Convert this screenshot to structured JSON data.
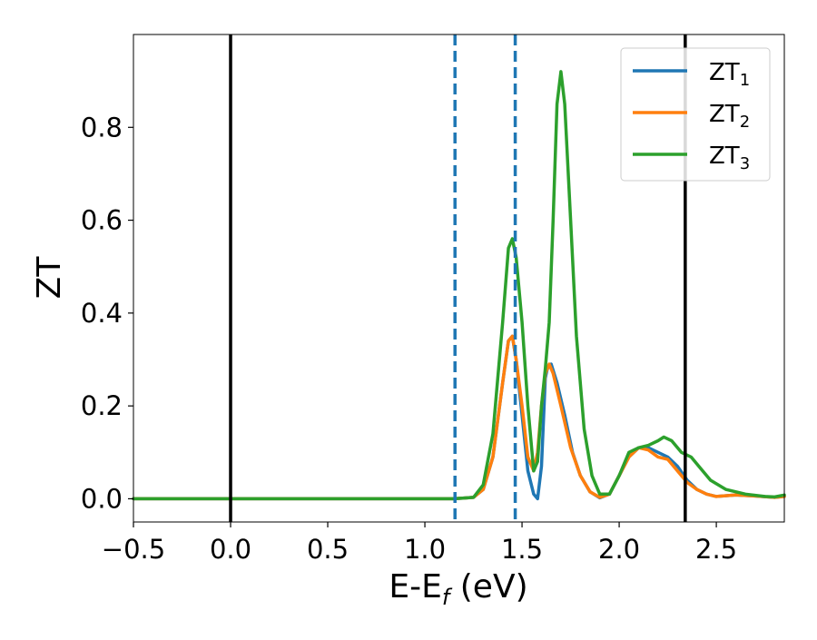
{
  "chart_data": {
    "type": "line",
    "title": "",
    "xlabel_main": "E-E",
    "xlabel_sub": "f",
    "xlabel_tail": " (eV)",
    "ylabel": "ZT",
    "xlim": [
      -0.5,
      2.85
    ],
    "ylim": [
      -0.05,
      1.0
    ],
    "grid": false,
    "legend_position": "top-right",
    "x_ticks": [
      -0.5,
      0.0,
      0.5,
      1.0,
      1.5,
      2.0,
      2.5
    ],
    "x_tick_labels": [
      "−0.5",
      "0.0",
      "0.5",
      "1.0",
      "1.5",
      "2.0",
      "2.5"
    ],
    "y_ticks": [
      0.0,
      0.2,
      0.4,
      0.6,
      0.8
    ],
    "y_tick_labels": [
      "0.0",
      "0.2",
      "0.4",
      "0.6",
      "0.8"
    ],
    "vertical_lines": [
      {
        "x": 0.0,
        "style": "solid",
        "color": "#000000"
      },
      {
        "x": 2.34,
        "style": "solid",
        "color": "#000000"
      },
      {
        "x": 1.155,
        "style": "dashed",
        "color": "#1f77b4"
      },
      {
        "x": 1.465,
        "style": "dashed",
        "color": "#1f77b4"
      }
    ],
    "series": [
      {
        "name": "ZT",
        "sub": "1",
        "color": "#1f77b4",
        "points": [
          [
            -0.5,
            0.0
          ],
          [
            1.15,
            0.0
          ],
          [
            1.25,
            0.003
          ],
          [
            1.3,
            0.02
          ],
          [
            1.35,
            0.09
          ],
          [
            1.4,
            0.25
          ],
          [
            1.43,
            0.34
          ],
          [
            1.45,
            0.35
          ],
          [
            1.47,
            0.3
          ],
          [
            1.5,
            0.18
          ],
          [
            1.53,
            0.06
          ],
          [
            1.56,
            0.01
          ],
          [
            1.58,
            0.0
          ],
          [
            1.6,
            0.07
          ],
          [
            1.62,
            0.26
          ],
          [
            1.63,
            0.28
          ],
          [
            1.65,
            0.29
          ],
          [
            1.68,
            0.25
          ],
          [
            1.72,
            0.18
          ],
          [
            1.76,
            0.1
          ],
          [
            1.8,
            0.05
          ],
          [
            1.85,
            0.015
          ],
          [
            1.9,
            0.002
          ],
          [
            1.95,
            0.01
          ],
          [
            2.0,
            0.05
          ],
          [
            2.05,
            0.09
          ],
          [
            2.1,
            0.11
          ],
          [
            2.15,
            0.11
          ],
          [
            2.2,
            0.1
          ],
          [
            2.25,
            0.09
          ],
          [
            2.3,
            0.07
          ],
          [
            2.35,
            0.04
          ],
          [
            2.4,
            0.02
          ],
          [
            2.45,
            0.01
          ],
          [
            2.5,
            0.005
          ],
          [
            2.6,
            0.008
          ],
          [
            2.7,
            0.006
          ],
          [
            2.8,
            0.003
          ],
          [
            2.85,
            0.005
          ]
        ]
      },
      {
        "name": "ZT",
        "sub": "2",
        "color": "#ff7f0e",
        "points": [
          [
            -0.5,
            0.0
          ],
          [
            1.15,
            0.0
          ],
          [
            1.25,
            0.003
          ],
          [
            1.3,
            0.02
          ],
          [
            1.35,
            0.09
          ],
          [
            1.4,
            0.25
          ],
          [
            1.43,
            0.34
          ],
          [
            1.45,
            0.35
          ],
          [
            1.47,
            0.3
          ],
          [
            1.5,
            0.2
          ],
          [
            1.53,
            0.09
          ],
          [
            1.56,
            0.06
          ],
          [
            1.58,
            0.1
          ],
          [
            1.6,
            0.2
          ],
          [
            1.62,
            0.27
          ],
          [
            1.64,
            0.29
          ],
          [
            1.66,
            0.27
          ],
          [
            1.7,
            0.2
          ],
          [
            1.75,
            0.11
          ],
          [
            1.8,
            0.05
          ],
          [
            1.85,
            0.015
          ],
          [
            1.9,
            0.003
          ],
          [
            1.95,
            0.01
          ],
          [
            2.0,
            0.05
          ],
          [
            2.05,
            0.09
          ],
          [
            2.1,
            0.11
          ],
          [
            2.15,
            0.105
          ],
          [
            2.2,
            0.09
          ],
          [
            2.25,
            0.085
          ],
          [
            2.3,
            0.06
          ],
          [
            2.35,
            0.035
          ],
          [
            2.4,
            0.02
          ],
          [
            2.45,
            0.01
          ],
          [
            2.5,
            0.005
          ],
          [
            2.6,
            0.008
          ],
          [
            2.7,
            0.006
          ],
          [
            2.8,
            0.003
          ],
          [
            2.85,
            0.005
          ]
        ]
      },
      {
        "name": "ZT",
        "sub": "3",
        "color": "#2ca02c",
        "points": [
          [
            -0.5,
            0.0
          ],
          [
            1.15,
            0.0
          ],
          [
            1.25,
            0.003
          ],
          [
            1.3,
            0.03
          ],
          [
            1.35,
            0.14
          ],
          [
            1.4,
            0.38
          ],
          [
            1.43,
            0.54
          ],
          [
            1.45,
            0.56
          ],
          [
            1.47,
            0.52
          ],
          [
            1.5,
            0.38
          ],
          [
            1.53,
            0.2
          ],
          [
            1.56,
            0.06
          ],
          [
            1.58,
            0.08
          ],
          [
            1.6,
            0.2
          ],
          [
            1.62,
            0.28
          ],
          [
            1.64,
            0.38
          ],
          [
            1.66,
            0.6
          ],
          [
            1.68,
            0.85
          ],
          [
            1.7,
            0.92
          ],
          [
            1.72,
            0.85
          ],
          [
            1.75,
            0.6
          ],
          [
            1.78,
            0.35
          ],
          [
            1.82,
            0.15
          ],
          [
            1.86,
            0.05
          ],
          [
            1.9,
            0.01
          ],
          [
            1.95,
            0.01
          ],
          [
            2.0,
            0.05
          ],
          [
            2.05,
            0.1
          ],
          [
            2.1,
            0.11
          ],
          [
            2.15,
            0.115
          ],
          [
            2.2,
            0.125
          ],
          [
            2.23,
            0.133
          ],
          [
            2.27,
            0.125
          ],
          [
            2.32,
            0.1
          ],
          [
            2.37,
            0.09
          ],
          [
            2.42,
            0.065
          ],
          [
            2.47,
            0.04
          ],
          [
            2.55,
            0.02
          ],
          [
            2.65,
            0.01
          ],
          [
            2.75,
            0.005
          ],
          [
            2.8,
            0.004
          ],
          [
            2.85,
            0.008
          ]
        ]
      }
    ]
  }
}
